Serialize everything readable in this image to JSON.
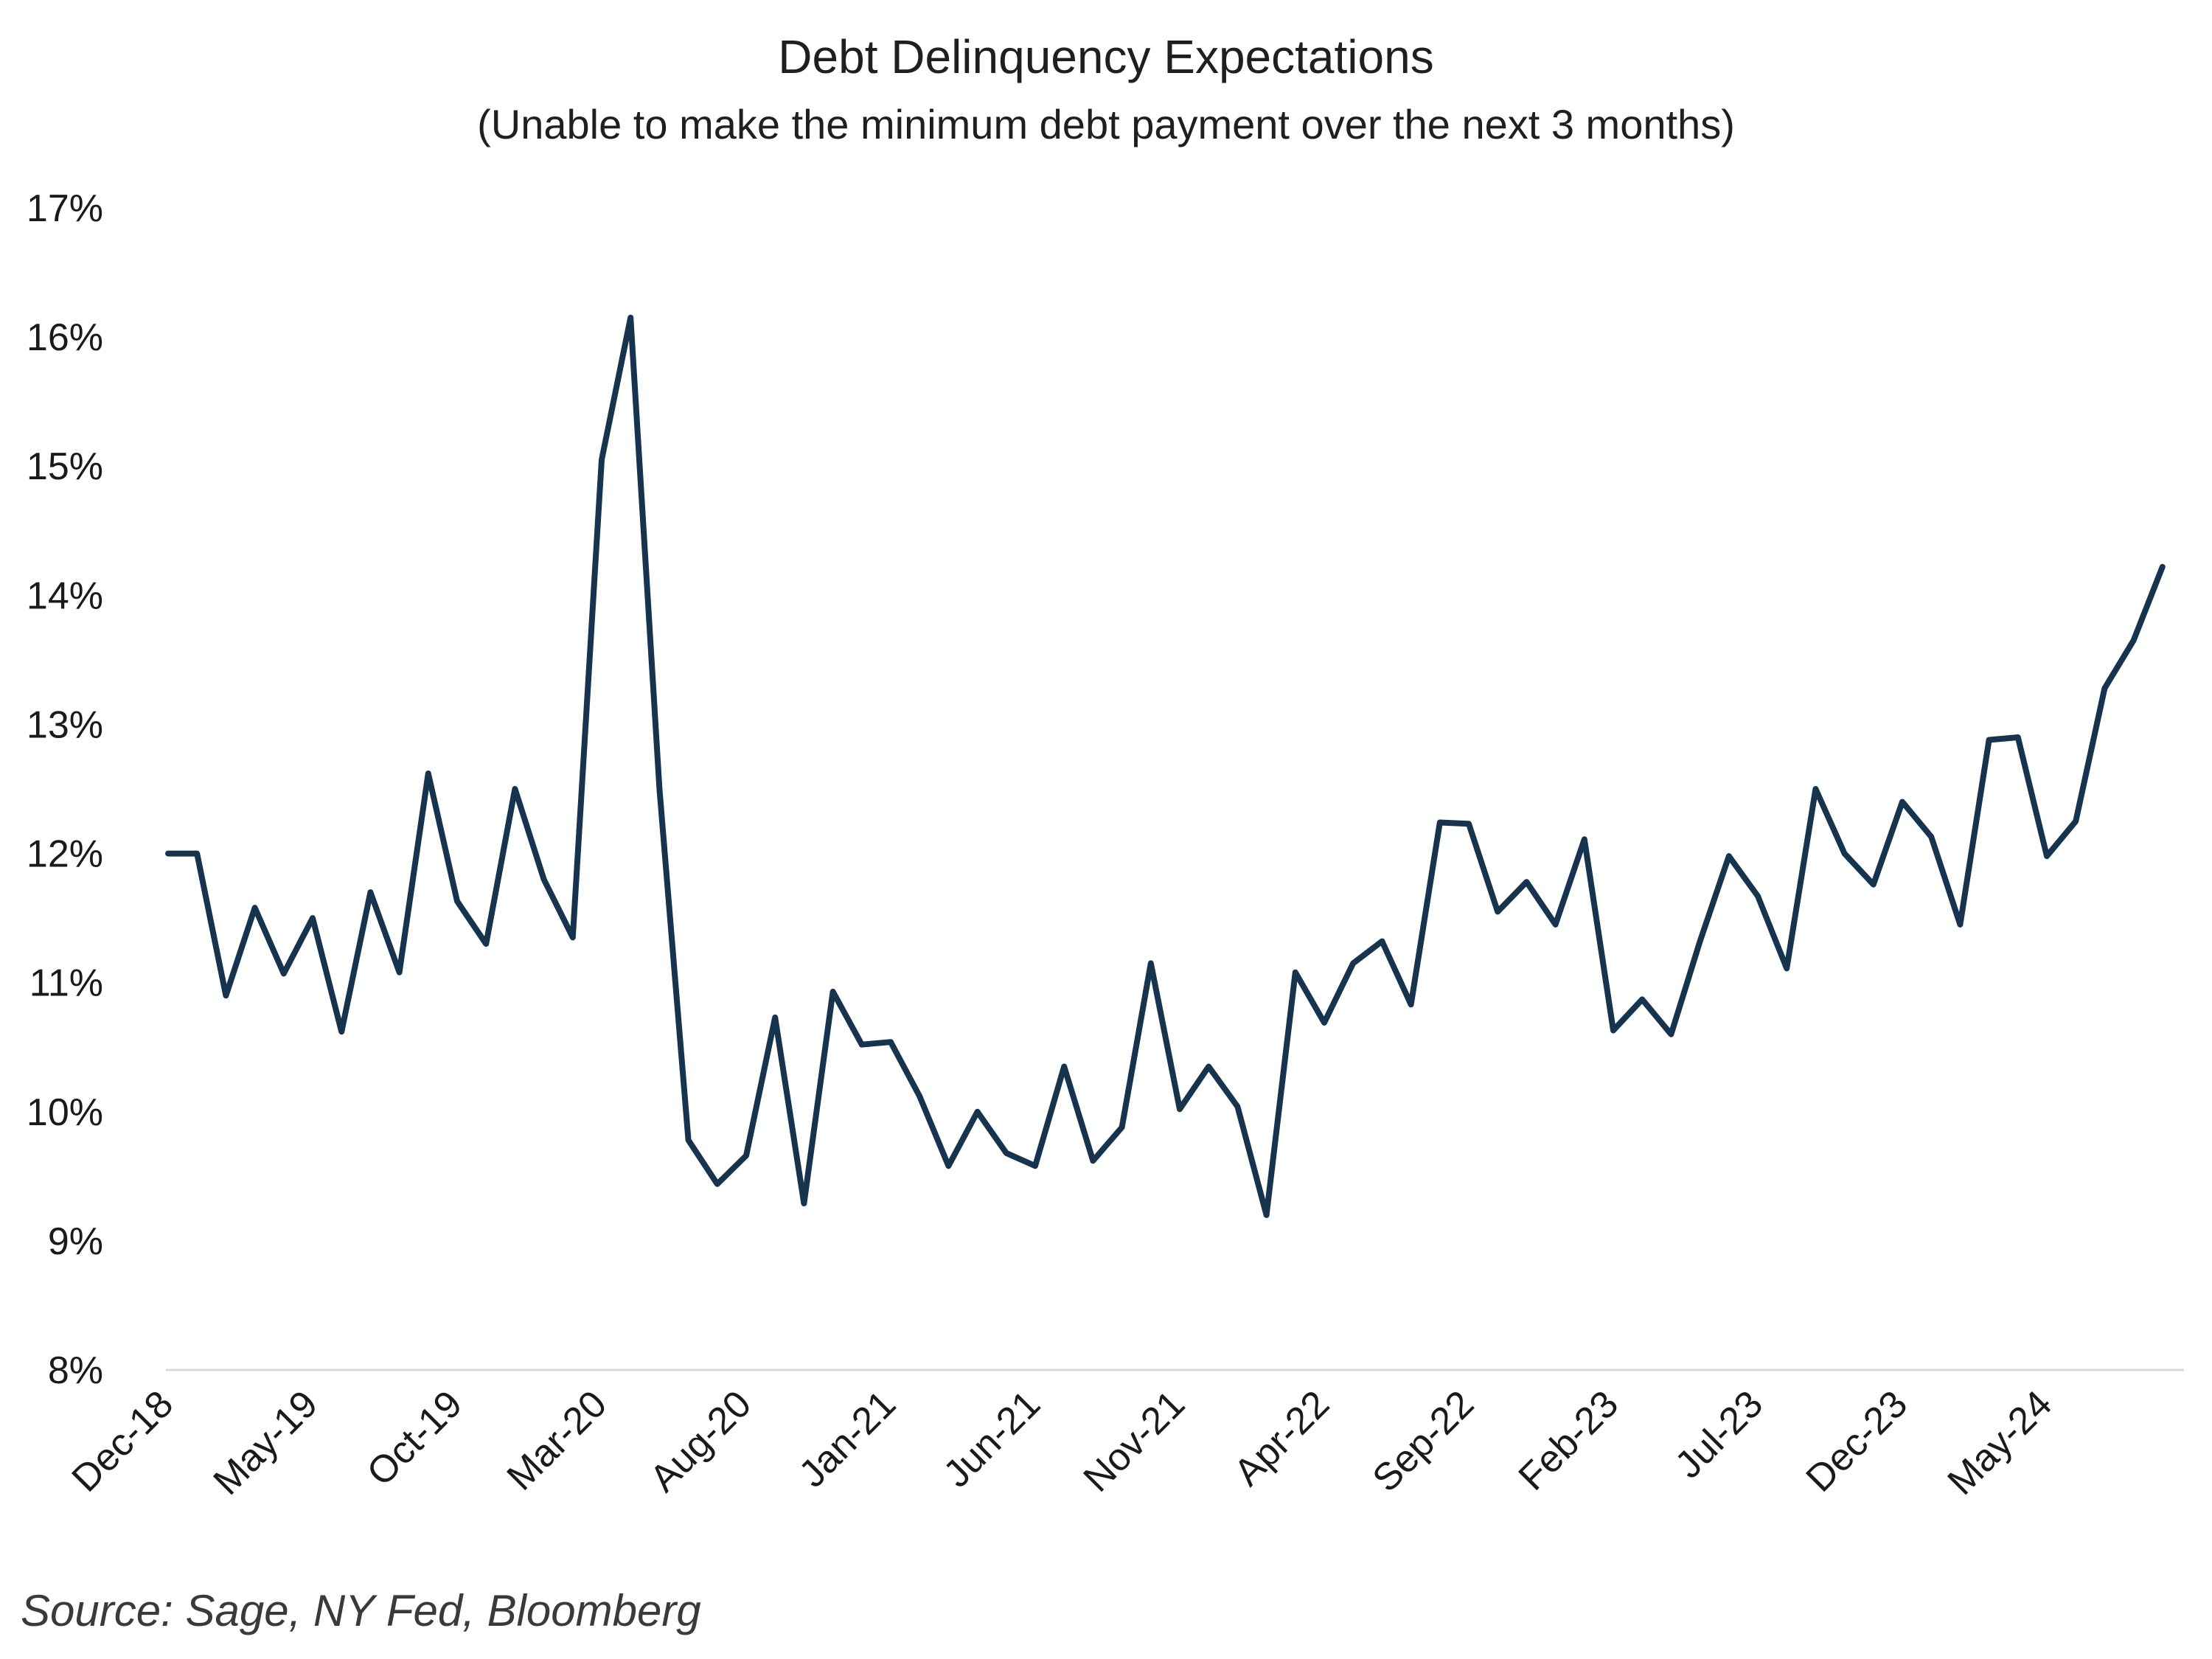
{
  "chart_data": {
    "type": "line",
    "title": "Debt Delinquency Expectations",
    "subtitle": "(Unable to make the minimum debt payment over the next 3 months)",
    "source": "Source: Sage, NY Fed, Bloomberg",
    "xlabel": "",
    "ylabel": "",
    "ylim": [
      8,
      17
    ],
    "y_ticks": [
      "8%",
      "9%",
      "10%",
      "11%",
      "12%",
      "13%",
      "14%",
      "15%",
      "16%",
      "17%"
    ],
    "x_ticks": [
      "Dec-18",
      "May-19",
      "Oct-19",
      "Mar-20",
      "Aug-20",
      "Jan-21",
      "Jun-21",
      "Nov-21",
      "Apr-22",
      "Sep-22",
      "Feb-23",
      "Jul-23",
      "Dec-23",
      "May-24"
    ],
    "grid": false,
    "legend": "none",
    "line_color": "#17344f",
    "series": [
      {
        "values": [
          12.0,
          12.0,
          10.9,
          11.58,
          11.07,
          11.5,
          10.62,
          11.7,
          11.08,
          12.62,
          11.63,
          11.3,
          12.5,
          11.8,
          11.35,
          15.05,
          16.15,
          12.5,
          9.78,
          9.44,
          9.66,
          10.73,
          9.29,
          10.93,
          10.52,
          10.54,
          10.12,
          9.58,
          10.0,
          9.68,
          9.58,
          10.35,
          9.62,
          9.88,
          11.15,
          10.02,
          10.35,
          10.04,
          9.2,
          11.08,
          10.69,
          11.15,
          11.32,
          10.83,
          12.24,
          12.23,
          11.55,
          11.78,
          11.45,
          12.11,
          10.63,
          10.87,
          10.6,
          11.32,
          11.98,
          11.67,
          11.11,
          12.5,
          12.0,
          11.76,
          12.4,
          12.13,
          11.45,
          12.88,
          12.9,
          11.98,
          12.25,
          13.28,
          13.65,
          14.22
        ]
      }
    ]
  }
}
